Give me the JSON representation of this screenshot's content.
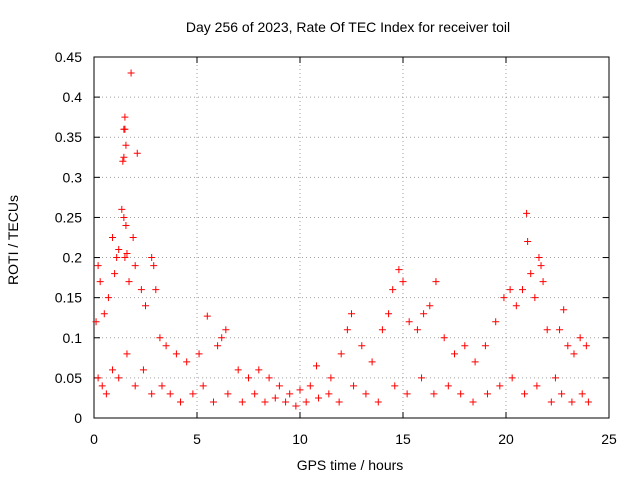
{
  "chart_data": {
    "type": "scatter",
    "title": "Day 256 of 2023, Rate Of TEC Index for receiver toil",
    "xlabel": "GPS time / hours",
    "ylabel": "ROTI / TECUs",
    "xlim": [
      0,
      25
    ],
    "ylim": [
      0,
      0.45
    ],
    "x_ticks": [
      "0",
      "5",
      "10",
      "15",
      "20",
      "25"
    ],
    "y_ticks": [
      "0",
      "0.05",
      "0.1",
      "0.15",
      "0.2",
      "0.25",
      "0.3",
      "0.35",
      "0.4",
      "0.45"
    ],
    "grid": true,
    "marker": "+",
    "series_color": "#ff0000",
    "series": [
      {
        "points": [
          [
            0.1,
            0.12
          ],
          [
            0.2,
            0.19
          ],
          [
            0.3,
            0.17
          ],
          [
            0.5,
            0.13
          ],
          [
            0.7,
            0.15
          ],
          [
            0.9,
            0.225
          ],
          [
            1.0,
            0.18
          ],
          [
            1.1,
            0.2
          ],
          [
            1.2,
            0.21
          ],
          [
            1.35,
            0.26
          ],
          [
            1.4,
            0.32
          ],
          [
            1.45,
            0.325
          ],
          [
            1.45,
            0.36
          ],
          [
            1.5,
            0.375
          ],
          [
            1.55,
            0.34
          ],
          [
            1.5,
            0.36
          ],
          [
            1.45,
            0.25
          ],
          [
            1.55,
            0.24
          ],
          [
            1.5,
            0.2
          ],
          [
            1.6,
            0.205
          ],
          [
            1.7,
            0.17
          ],
          [
            1.8,
            0.43
          ],
          [
            1.9,
            0.225
          ],
          [
            2.1,
            0.33
          ],
          [
            2.0,
            0.19
          ],
          [
            2.3,
            0.16
          ],
          [
            2.5,
            0.14
          ],
          [
            2.8,
            0.2
          ],
          [
            2.9,
            0.19
          ],
          [
            3.0,
            0.16
          ],
          [
            3.2,
            0.1
          ],
          [
            3.5,
            0.09
          ],
          [
            4.0,
            0.08
          ],
          [
            4.5,
            0.07
          ],
          [
            5.1,
            0.08
          ],
          [
            5.5,
            0.127
          ],
          [
            6.0,
            0.09
          ],
          [
            6.2,
            0.1
          ],
          [
            6.4,
            0.11
          ],
          [
            7.0,
            0.06
          ],
          [
            7.5,
            0.05
          ],
          [
            8.0,
            0.06
          ],
          [
            8.5,
            0.05
          ],
          [
            9.0,
            0.04
          ],
          [
            9.5,
            0.03
          ],
          [
            10.0,
            0.035
          ],
          [
            10.5,
            0.04
          ],
          [
            10.8,
            0.065
          ],
          [
            11.5,
            0.05
          ],
          [
            12.0,
            0.08
          ],
          [
            12.3,
            0.11
          ],
          [
            12.5,
            0.13
          ],
          [
            13.0,
            0.09
          ],
          [
            13.5,
            0.07
          ],
          [
            14.0,
            0.11
          ],
          [
            14.3,
            0.13
          ],
          [
            14.5,
            0.16
          ],
          [
            14.8,
            0.185
          ],
          [
            15.0,
            0.17
          ],
          [
            15.3,
            0.12
          ],
          [
            15.7,
            0.11
          ],
          [
            16.0,
            0.13
          ],
          [
            16.3,
            0.14
          ],
          [
            16.6,
            0.17
          ],
          [
            17.0,
            0.1
          ],
          [
            17.5,
            0.08
          ],
          [
            18.0,
            0.09
          ],
          [
            18.5,
            0.07
          ],
          [
            19.0,
            0.09
          ],
          [
            19.5,
            0.12
          ],
          [
            19.9,
            0.15
          ],
          [
            20.2,
            0.16
          ],
          [
            20.5,
            0.14
          ],
          [
            20.8,
            0.16
          ],
          [
            21.0,
            0.255
          ],
          [
            21.05,
            0.22
          ],
          [
            21.2,
            0.18
          ],
          [
            21.4,
            0.15
          ],
          [
            21.6,
            0.2
          ],
          [
            21.7,
            0.19
          ],
          [
            21.8,
            0.17
          ],
          [
            22.0,
            0.11
          ],
          [
            22.4,
            0.05
          ],
          [
            22.6,
            0.11
          ],
          [
            22.8,
            0.135
          ],
          [
            23.0,
            0.09
          ],
          [
            23.3,
            0.08
          ],
          [
            23.6,
            0.1
          ],
          [
            23.9,
            0.09
          ],
          [
            0.2,
            0.05
          ],
          [
            0.4,
            0.04
          ],
          [
            0.6,
            0.03
          ],
          [
            0.9,
            0.06
          ],
          [
            1.2,
            0.05
          ],
          [
            1.6,
            0.08
          ],
          [
            2.0,
            0.04
          ],
          [
            2.4,
            0.06
          ],
          [
            2.8,
            0.03
          ],
          [
            3.3,
            0.04
          ],
          [
            3.7,
            0.03
          ],
          [
            4.2,
            0.02
          ],
          [
            4.8,
            0.03
          ],
          [
            5.3,
            0.04
          ],
          [
            5.8,
            0.02
          ],
          [
            6.5,
            0.03
          ],
          [
            7.2,
            0.02
          ],
          [
            7.8,
            0.03
          ],
          [
            8.3,
            0.02
          ],
          [
            8.8,
            0.025
          ],
          [
            9.3,
            0.02
          ],
          [
            9.8,
            0.015
          ],
          [
            10.3,
            0.02
          ],
          [
            10.9,
            0.025
          ],
          [
            11.4,
            0.03
          ],
          [
            11.9,
            0.02
          ],
          [
            12.6,
            0.04
          ],
          [
            13.2,
            0.03
          ],
          [
            13.8,
            0.02
          ],
          [
            14.6,
            0.04
          ],
          [
            15.2,
            0.03
          ],
          [
            15.9,
            0.05
          ],
          [
            16.5,
            0.03
          ],
          [
            17.2,
            0.04
          ],
          [
            17.8,
            0.03
          ],
          [
            18.4,
            0.02
          ],
          [
            19.1,
            0.03
          ],
          [
            19.7,
            0.04
          ],
          [
            20.3,
            0.05
          ],
          [
            20.9,
            0.03
          ],
          [
            21.5,
            0.04
          ],
          [
            22.2,
            0.02
          ],
          [
            22.7,
            0.03
          ],
          [
            23.2,
            0.02
          ],
          [
            23.7,
            0.03
          ],
          [
            24.0,
            0.02
          ]
        ]
      }
    ]
  }
}
